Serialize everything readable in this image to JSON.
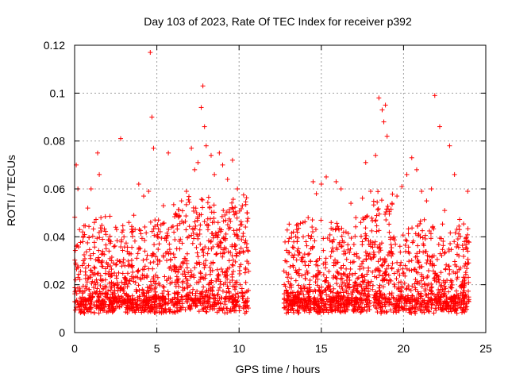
{
  "chart_data": {
    "type": "scatter",
    "title": "Day 103 of 2023, Rate Of TEC Index for receiver p392",
    "xlabel": "GPS time / hours",
    "ylabel": "ROTI / TECUs",
    "xlim": [
      0,
      25
    ],
    "ylim": [
      0,
      0.12
    ],
    "xticks": [
      0,
      5,
      10,
      15,
      20,
      25
    ],
    "xtick_labels": [
      "0",
      "5",
      "10",
      "15",
      "20",
      "25"
    ],
    "yticks": [
      0,
      0.02,
      0.04,
      0.06,
      0.08,
      0.1,
      0.12
    ],
    "ytick_labels": [
      "0",
      "0.02",
      "0.04",
      "0.06",
      "0.08",
      "0.1",
      "0.12"
    ],
    "grid": true,
    "marker": "+",
    "color": "#ff0000",
    "data_gap_hours": [
      10.6,
      12.7
    ],
    "series": [
      {
        "x": [
          0.1,
          0.2,
          0.3,
          0.5,
          0.8,
          1.0,
          1.2,
          1.4,
          1.5,
          1.6,
          1.9,
          2.2,
          2.5,
          2.8,
          3.0,
          3.3,
          3.6,
          3.9,
          4.2,
          4.5,
          4.6,
          4.7,
          4.8,
          5.1,
          5.4,
          5.7,
          5.9,
          6.2,
          6.5,
          6.8,
          7.1,
          7.3,
          7.5,
          7.7,
          7.8,
          7.9,
          8.0,
          8.3,
          8.5,
          8.8,
          9.0,
          9.3,
          9.6,
          9.9,
          10.2,
          10.5,
          12.8,
          13.0,
          13.3,
          13.6,
          13.9,
          14.2,
          14.5,
          14.7,
          15.0,
          15.3,
          15.6,
          15.9,
          16.2,
          16.5,
          16.8,
          17.1,
          17.4,
          17.7,
          18.0,
          18.3,
          18.5,
          18.7,
          18.8,
          18.9,
          19.0,
          19.3,
          19.6,
          19.9,
          20.2,
          20.5,
          20.8,
          21.1,
          21.4,
          21.7,
          21.9,
          22.2,
          22.5,
          22.8,
          23.1,
          23.4,
          23.7,
          23.9
        ],
        "y": [
          0.07,
          0.06,
          0.043,
          0.038,
          0.052,
          0.06,
          0.046,
          0.075,
          0.066,
          0.048,
          0.041,
          0.038,
          0.044,
          0.081,
          0.04,
          0.046,
          0.049,
          0.062,
          0.057,
          0.059,
          0.117,
          0.09,
          0.077,
          0.047,
          0.053,
          0.075,
          0.044,
          0.049,
          0.055,
          0.059,
          0.077,
          0.068,
          0.071,
          0.094,
          0.103,
          0.086,
          0.078,
          0.074,
          0.066,
          0.075,
          0.07,
          0.064,
          0.072,
          0.06,
          0.053,
          0.05,
          0.03,
          0.038,
          0.042,
          0.035,
          0.04,
          0.048,
          0.063,
          0.058,
          0.062,
          0.065,
          0.046,
          0.063,
          0.06,
          0.042,
          0.054,
          0.048,
          0.046,
          0.071,
          0.059,
          0.074,
          0.098,
          0.093,
          0.088,
          0.095,
          0.082,
          0.054,
          0.057,
          0.061,
          0.066,
          0.073,
          0.068,
          0.059,
          0.055,
          0.06,
          0.099,
          0.086,
          0.051,
          0.078,
          0.066,
          0.043,
          0.038,
          0.059
        ]
      }
    ]
  }
}
